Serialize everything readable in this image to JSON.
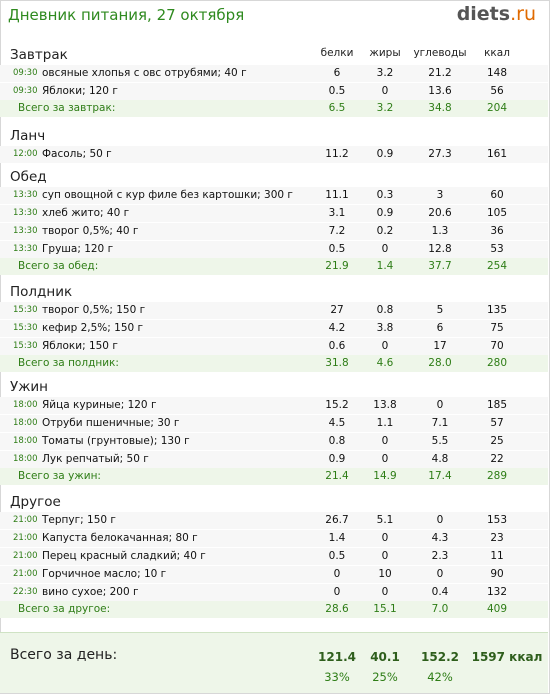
{
  "title": "Дневник питания, 27 октября",
  "logo": {
    "name": "diets",
    "tld": ".ru"
  },
  "columns": [
    "белки",
    "жиры",
    "углеводы",
    "ккал"
  ],
  "sections": [
    {
      "title": "Завтрак",
      "items": [
        {
          "time": "09:30",
          "name": "овсяные хлопья с овс отрубями; 40 г",
          "p": "6",
          "f": "3.2",
          "c": "21.2",
          "k": "148"
        },
        {
          "time": "09:30",
          "name": "Яблоки; 120 г",
          "p": "0.5",
          "f": "0",
          "c": "13.6",
          "k": "56"
        }
      ],
      "total": {
        "label": "Всего за завтрак:",
        "p": "6.5",
        "f": "3.2",
        "c": "34.8",
        "k": "204"
      }
    },
    {
      "title": "Ланч",
      "items": [
        {
          "time": "12:00",
          "name": "Фасоль; 50 г",
          "p": "11.2",
          "f": "0.9",
          "c": "27.3",
          "k": "161"
        }
      ],
      "total": null
    },
    {
      "title": "Обед",
      "items": [
        {
          "time": "13:30",
          "name": "суп овощной с кур филе без картошки; 300 г",
          "p": "11.1",
          "f": "0.3",
          "c": "3",
          "k": "60"
        },
        {
          "time": "13:30",
          "name": "хлеб жито; 40 г",
          "p": "3.1",
          "f": "0.9",
          "c": "20.6",
          "k": "105"
        },
        {
          "time": "13:30",
          "name": "творог 0,5%; 40 г",
          "p": "7.2",
          "f": "0.2",
          "c": "1.3",
          "k": "36"
        },
        {
          "time": "13:30",
          "name": "Груша; 120 г",
          "p": "0.5",
          "f": "0",
          "c": "12.8",
          "k": "53"
        }
      ],
      "total": {
        "label": "Всего за обед:",
        "p": "21.9",
        "f": "1.4",
        "c": "37.7",
        "k": "254"
      }
    },
    {
      "title": "Полдник",
      "items": [
        {
          "time": "15:30",
          "name": "творог 0,5%; 150 г",
          "p": "27",
          "f": "0.8",
          "c": "5",
          "k": "135"
        },
        {
          "time": "15:30",
          "name": "кефир 2,5%; 150 г",
          "p": "4.2",
          "f": "3.8",
          "c": "6",
          "k": "75"
        },
        {
          "time": "15:30",
          "name": "Яблоки; 150 г",
          "p": "0.6",
          "f": "0",
          "c": "17",
          "k": "70"
        }
      ],
      "total": {
        "label": "Всего за полдник:",
        "p": "31.8",
        "f": "4.6",
        "c": "28.0",
        "k": "280"
      }
    },
    {
      "title": "Ужин",
      "items": [
        {
          "time": "18:00",
          "name": "Яйца куриные; 120 г",
          "p": "15.2",
          "f": "13.8",
          "c": "0",
          "k": "185"
        },
        {
          "time": "18:00",
          "name": "Отруби пшеничные; 30 г",
          "p": "4.5",
          "f": "1.1",
          "c": "7.1",
          "k": "57"
        },
        {
          "time": "18:00",
          "name": "Томаты (грунтовые); 130 г",
          "p": "0.8",
          "f": "0",
          "c": "5.5",
          "k": "25"
        },
        {
          "time": "18:00",
          "name": "Лук репчатый; 50 г",
          "p": "0.9",
          "f": "0",
          "c": "4.8",
          "k": "22"
        }
      ],
      "total": {
        "label": "Всего за ужин:",
        "p": "21.4",
        "f": "14.9",
        "c": "17.4",
        "k": "289"
      }
    },
    {
      "title": "Другое",
      "items": [
        {
          "time": "21:00",
          "name": "Терпуг; 150 г",
          "p": "26.7",
          "f": "5.1",
          "c": "0",
          "k": "153"
        },
        {
          "time": "21:00",
          "name": "Капуста белокачанная; 80 г",
          "p": "1.4",
          "f": "0",
          "c": "4.3",
          "k": "23"
        },
        {
          "time": "21:00",
          "name": "Перец красный сладкий; 40 г",
          "p": "0.5",
          "f": "0",
          "c": "2.3",
          "k": "11"
        },
        {
          "time": "21:00",
          "name": "Горчичное масло; 10 г",
          "p": "0",
          "f": "10",
          "c": "0",
          "k": "90"
        },
        {
          "time": "22:30",
          "name": "вино сухое; 200 г",
          "p": "0",
          "f": "0",
          "c": "0.4",
          "k": "132"
        }
      ],
      "total": {
        "label": "Всего за другое:",
        "p": "28.6",
        "f": "15.1",
        "c": "7.0",
        "k": "409"
      }
    }
  ],
  "day_total": {
    "label": "Всего за день:",
    "p": "121.4",
    "f": "40.1",
    "c": "152.2",
    "k": "1597 ккал",
    "pp": "33%",
    "fp": "25%",
    "cp": "42%"
  }
}
